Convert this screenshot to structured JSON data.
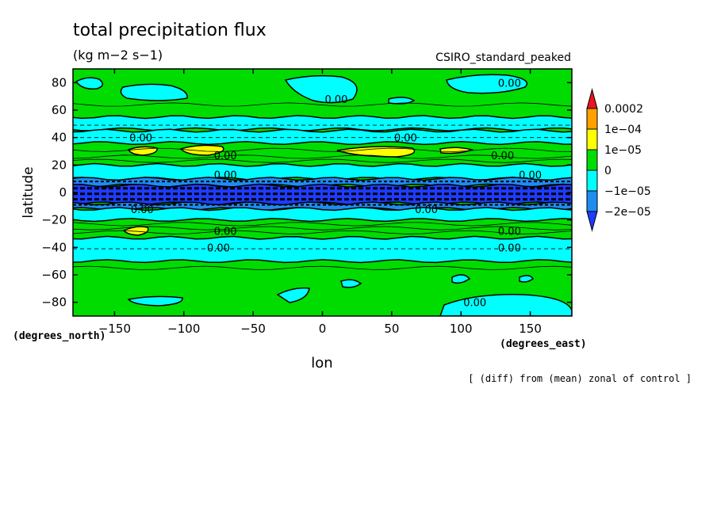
{
  "chart_data": {
    "type": "heatmap",
    "title": "total precipitation flux",
    "units": "(kg m−2 s−1)",
    "model": "CSIRO_standard_peaked",
    "xlabel": "lon",
    "ylabel": "latitude",
    "x_unit": "(degrees_east)",
    "y_unit": "(degrees_north)",
    "footnote": "[ (diff) from (mean) zonal of control ]",
    "xlim": [
      -180,
      180
    ],
    "ylim": [
      -90,
      90
    ],
    "x_ticks": [
      -150,
      -100,
      -50,
      0,
      50,
      100,
      150
    ],
    "x_tick_labels": [
      "−150",
      "−100",
      "−50",
      "0",
      "50",
      "100",
      "150"
    ],
    "y_ticks": [
      80,
      60,
      40,
      20,
      0,
      -20,
      -40,
      -60,
      -80
    ],
    "y_tick_labels": [
      "80",
      "60",
      "40",
      "20",
      "0",
      "−20",
      "−40",
      "−60",
      "−80"
    ],
    "colorbar": {
      "labels": [
        "0.0002",
        "1e−04",
        "1e−05",
        "0",
        "−1e−05",
        "−2e−05"
      ],
      "colors": [
        "#e8141e",
        "#ffa000",
        "#ffff00",
        "#00dc00",
        "#00ffff",
        "#1e8cf0",
        "#1e3cff"
      ]
    },
    "background_color": "#00dc00",
    "contour_label": "0.00",
    "bands": [
      {
        "lat_min": 46,
        "lat_max": 55,
        "level": "−1e−05"
      },
      {
        "lat_min": 36,
        "lat_max": 45,
        "level": "−1e−05"
      },
      {
        "lat_min": 10,
        "lat_max": 20,
        "level": "−1e−05"
      },
      {
        "lat_min": 5,
        "lat_max": 10,
        "level": "−2e−05"
      },
      {
        "lat_min": -8,
        "lat_max": 5,
        "level": "below −2e−05"
      },
      {
        "lat_min": -12,
        "lat_max": -8,
        "level": "−2e−05"
      },
      {
        "lat_min": -20,
        "lat_max": -12,
        "level": "−1e−05"
      },
      {
        "lat_min": -50,
        "lat_max": -33,
        "level": "−1e−05"
      }
    ]
  }
}
